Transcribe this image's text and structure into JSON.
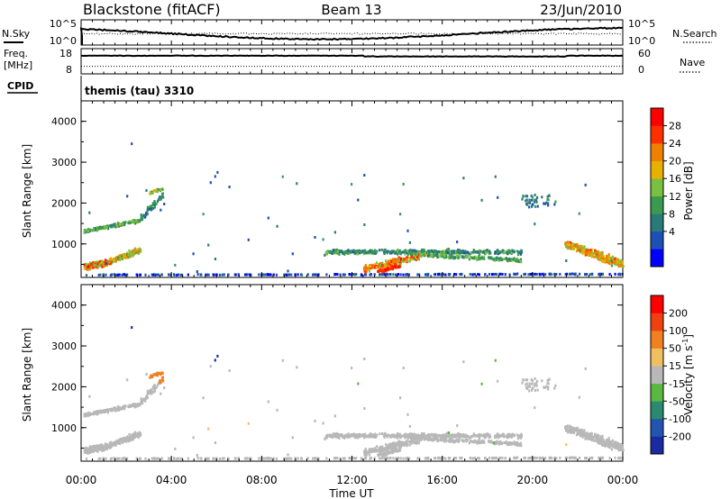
{
  "header": {
    "station": "Blackstone (fitACF)",
    "beam": "Beam 13",
    "date": "23/Jun/2010"
  },
  "strip": {
    "nsky_label": "N.Sky",
    "nsky_ticks": [
      "10^5",
      "10^0"
    ],
    "nsearch_label": "N.Search",
    "nsearch_ticks": [
      "10^5",
      "10^0"
    ],
    "freq_label": "Freq.",
    "freq_unit": "[MHz]",
    "freq_ticks": [
      "18",
      "8"
    ],
    "nave_label": "Nave",
    "nave_ticks": [
      "60",
      "0"
    ],
    "cpid_label": "CPID",
    "cpid_value": "themis (tau) 3310"
  },
  "chart_data": [
    {
      "type": "heatmap",
      "name": "power",
      "ylabel": "Slant Range [km]",
      "yticks": [
        "4000",
        "3000",
        "2000",
        "1000"
      ],
      "ylim": [
        180,
        4500
      ],
      "xlim": [
        0,
        24
      ],
      "colorbar_label": "Power [dB]",
      "colorbar_ticks": [
        "28",
        "24",
        "20",
        "16",
        "12",
        "8",
        "4"
      ],
      "colorbar_colors": [
        "#0000ff",
        "#1e4fb4",
        "#2a7a7a",
        "#3a9a50",
        "#7ac040",
        "#e8b000",
        "#f08000",
        "#ff3000",
        "#ff0000"
      ]
    },
    {
      "type": "heatmap",
      "name": "velocity",
      "ylabel": "Slant Range [km]",
      "yticks": [
        "4000",
        "3000",
        "2000",
        "1000"
      ],
      "ylim": [
        180,
        4500
      ],
      "xlim": [
        0,
        24
      ],
      "xlabel": "Time UT",
      "xticks": [
        "00:00",
        "04:00",
        "08:00",
        "12:00",
        "16:00",
        "20:00",
        "00:00"
      ],
      "colorbar_label": "Velocity [m s",
      "colorbar_label_sup": "-1",
      "colorbar_label_end": "]",
      "colorbar_ticks": [
        "200",
        "100",
        "50",
        "15",
        "-15",
        "-50",
        "-100",
        "-200"
      ],
      "colorbar_colors": [
        "#1a2aa0",
        "#2255b0",
        "#2a8a70",
        "#5ab840",
        "#b8b8b8",
        "#f0c060",
        "#f08020",
        "#f04010",
        "#ff0000"
      ]
    }
  ]
}
